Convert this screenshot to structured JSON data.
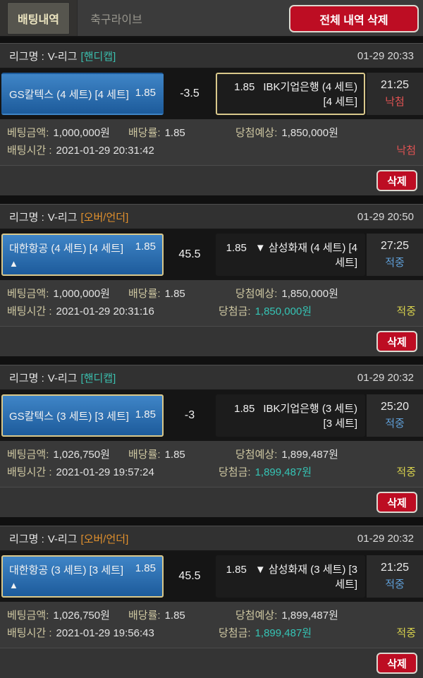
{
  "topbar": {
    "tab_betting": "배팅내역",
    "tab_soccer_live": "축구라이브",
    "delete_all_label": "전체 내역 삭제"
  },
  "labels": {
    "league_prefix": "리그명 :",
    "bet_amount": "베팅금액:",
    "odds_rate": "배당률:",
    "expected_win": "당첨예상:",
    "bet_time": "배팅시간 :",
    "win_amount": "당첨금:",
    "delete": "삭제"
  },
  "colors": {
    "accent_red": "#bd0d23",
    "pick_blue_top": "#3f85c7",
    "pick_blue_bottom": "#1d5b9b",
    "winner_border": "#d9c88b",
    "market_handicap": "#3bbfae",
    "market_overunder": "#e2912d",
    "status_lost": "#e25353",
    "status_hit_row": "#5f9fd8",
    "status_hit_detail": "#d6d04d",
    "money_teal": "#35c4b5"
  },
  "cards": [
    {
      "league": "V-리그",
      "market": "[핸디캡]",
      "datetime": "01-29 20:33",
      "home_name": "GS칼텍스 (4 세트) [4 세트]",
      "home_odds": "1.85",
      "home_arrow": "",
      "line": "-3.5",
      "away_odds": "1.85",
      "away_name": "IBK기업은행 (4 세트) [4 세트]",
      "score": "21:25",
      "row_status": "낙첨",
      "bet_amount": "1,000,000원",
      "rate": "1.85",
      "expected": "1,850,000원",
      "bet_time": "2021-01-29 20:31:42",
      "win_amount": "",
      "detail_status": "낙첨"
    },
    {
      "league": "V-리그",
      "market": "[오버/언더]",
      "datetime": "01-29 20:50",
      "home_name": "대한항공 (4 세트) [4 세트]",
      "home_odds": "1.85",
      "home_arrow": "▲",
      "line": "45.5",
      "away_odds": "1.85",
      "away_name": "▼ 삼성화재 (4 세트) [4 세트]",
      "score": "27:25",
      "row_status": "적중",
      "bet_amount": "1,000,000원",
      "rate": "1.85",
      "expected": "1,850,000원",
      "bet_time": "2021-01-29 20:31:16",
      "win_amount": "1,850,000원",
      "detail_status": "적중"
    },
    {
      "league": "V-리그",
      "market": "[핸디캡]",
      "datetime": "01-29 20:32",
      "home_name": "GS칼텍스 (3 세트) [3 세트]",
      "home_odds": "1.85",
      "home_arrow": "",
      "line": "-3",
      "away_odds": "1.85",
      "away_name": "IBK기업은행 (3 세트) [3 세트]",
      "score": "25:20",
      "row_status": "적중",
      "bet_amount": "1,026,750원",
      "rate": "1.85",
      "expected": "1,899,487원",
      "bet_time": "2021-01-29 19:57:24",
      "win_amount": "1,899,487원",
      "detail_status": "적중"
    },
    {
      "league": "V-리그",
      "market": "[오버/언더]",
      "datetime": "01-29 20:32",
      "home_name": "대한항공 (3 세트) [3 세트]",
      "home_odds": "1.85",
      "home_arrow": "▲",
      "line": "45.5",
      "away_odds": "1.85",
      "away_name": "▼ 삼성화재 (3 세트) [3 세트]",
      "score": "21:25",
      "row_status": "적중",
      "bet_amount": "1,026,750원",
      "rate": "1.85",
      "expected": "1,899,487원",
      "bet_time": "2021-01-29 19:56:43",
      "win_amount": "1,899,487원",
      "detail_status": "적중"
    }
  ]
}
